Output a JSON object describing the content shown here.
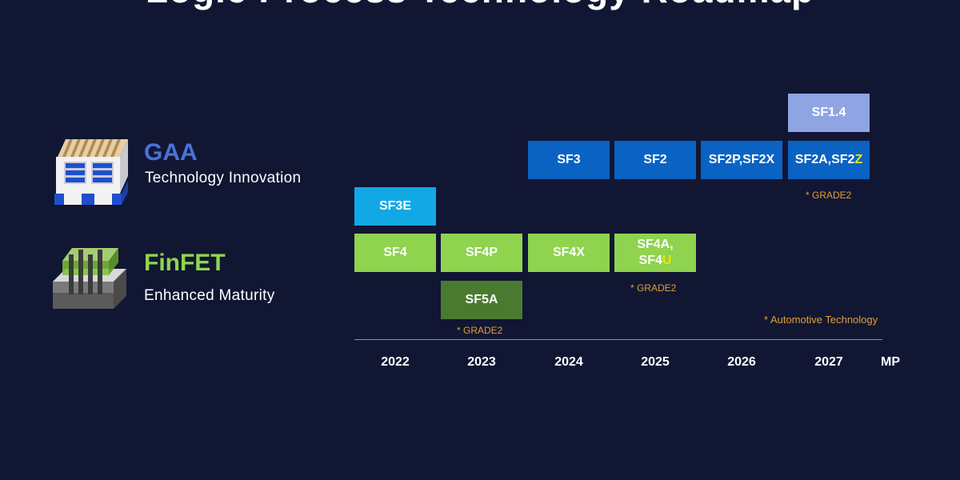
{
  "page_title": "Logic Process Technology Roadmap",
  "colors": {
    "background": "#111633",
    "gaa_accent": "#4a72d8",
    "finfet_accent": "#8ed64c",
    "gaa_box": "#0a63c2",
    "sf3e_box": "#12a8e6",
    "sf14_box": "#8fa4e2",
    "finfet_box": "#8fd34f",
    "sf5a_box": "#4a7a30",
    "note": "#e0a030",
    "highlight": "#f2e600"
  },
  "gaa": {
    "icon": "gaa-transistor-icon",
    "name": "GAA",
    "subtitle": "Technology Innovation"
  },
  "finfet": {
    "icon": "finfet-transistor-icon",
    "name": "FinFET",
    "subtitle": "Enhanced Maturity"
  },
  "nodes": {
    "sf14": "SF1.4",
    "sf3": "SF3",
    "sf2": "SF2",
    "sf2p_sf2x": "SF2P,SF2X",
    "sf2a_sf2z_main": "SF2A,SF2",
    "sf2a_sf2z_highlight": "Z",
    "sf3e": "SF3E",
    "sf4": "SF4",
    "sf4p": "SF4P",
    "sf4x": "SF4X",
    "sf4a_sf4u_line1": "SF4A,",
    "sf4a_sf4u_line2_main": "SF4",
    "sf4a_sf4u_line2_highlight": "U",
    "sf5a": "SF5A"
  },
  "notes": {
    "grade2_2027": "* GRADE2",
    "grade2_2025": "* GRADE2",
    "grade2_2023": "* GRADE2",
    "automotive": "* Automotive Technology"
  },
  "axis": {
    "years": [
      "2022",
      "2023",
      "2024",
      "2025",
      "2026",
      "2027"
    ],
    "end_label": "MP"
  }
}
